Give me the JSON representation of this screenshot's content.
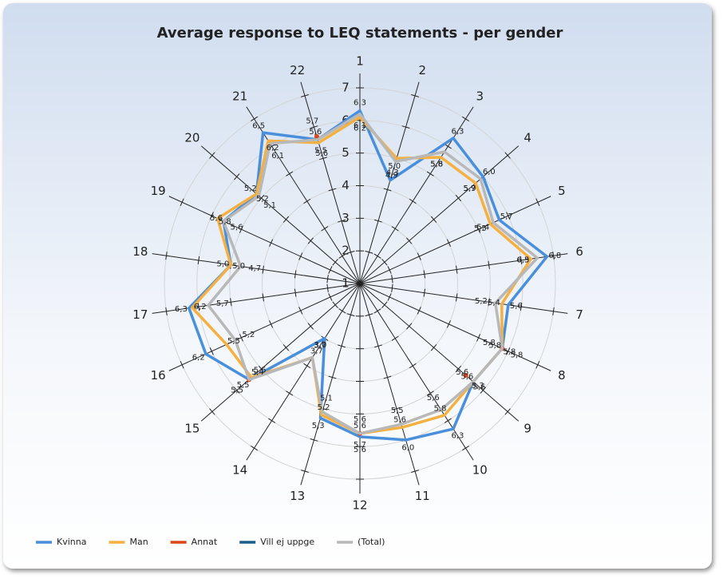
{
  "chart_data": {
    "type": "radar",
    "title": "Average response to LEQ statements - per gender",
    "categories": [
      "1",
      "2",
      "3",
      "4",
      "5",
      "6",
      "7",
      "8",
      "9",
      "10",
      "11",
      "12",
      "13",
      "14",
      "15",
      "16",
      "17",
      "18",
      "19",
      "20",
      "21",
      "22"
    ],
    "ylim": [
      1,
      7
    ],
    "yticks": [
      1,
      2,
      3,
      4,
      5,
      6,
      7
    ],
    "grid": true,
    "legend": "bottom",
    "series": [
      {
        "name": "Kvinna",
        "color": "#4a8fdc",
        "values": [
          6.3,
          4.3,
          6.3,
          6.0,
          5.7,
          6.8,
          5.6,
          5.8,
          5.6,
          6.3,
          6.0,
          5.7,
          5.3,
          3.0,
          5.5,
          6.2,
          6.3,
          5.0,
          5.6,
          5.2,
          6.5,
          5.6
        ],
        "value_labels": [
          "6,3",
          "4,3",
          "6,3",
          "6,0",
          "5,7",
          "6,8",
          "5,6",
          "5,8",
          "5,6",
          "6,3",
          "6,0",
          "5,7",
          "5,3",
          "3,0",
          "5,5",
          "6,2",
          "6,3",
          "5,0",
          "5,6",
          "5,2",
          "6,5",
          "5,6"
        ]
      },
      {
        "name": "Man",
        "color": "#f5b042",
        "values": [
          6.1,
          5.0,
          5.6,
          5.7,
          5.4,
          6.3,
          5.4,
          5.8,
          5.6,
          5.8,
          5.6,
          5.6,
          5.2,
          3.7,
          5.4,
          5.5,
          6.2,
          5.0,
          5.8,
          5.2,
          6.2,
          5.5
        ],
        "value_labels": [
          "6,1",
          "5,0",
          "5,6",
          "5,7",
          "5,4",
          "6,3",
          "5,4",
          "5,8",
          "5,6",
          "5,8",
          "5,6",
          "5,6",
          "5,2",
          "3,7",
          "5,4",
          "5,5",
          "6,2",
          "5,0",
          "5,8",
          "5,2",
          "6,2",
          "5,5"
        ]
      },
      {
        "name": "Annat",
        "color": "#d9471b",
        "values": [
          null,
          null,
          null,
          null,
          null,
          null,
          null,
          5.8,
          5.3,
          null,
          null,
          5.6,
          null,
          null,
          5.5,
          null,
          null,
          null,
          null,
          null,
          null,
          5.7
        ],
        "value_labels": [
          null,
          null,
          null,
          null,
          null,
          null,
          null,
          "5,8",
          "5,3",
          null,
          null,
          "5,6",
          null,
          null,
          "5,5",
          null,
          null,
          null,
          null,
          null,
          null,
          "5,7"
        ]
      },
      {
        "name": "Vill ej uppge",
        "color": "#1a5e8a",
        "values": [
          null,
          null,
          null,
          null,
          null,
          null,
          null,
          null,
          null,
          null,
          null,
          null,
          null,
          null,
          null,
          null,
          null,
          null,
          null,
          null,
          null,
          null
        ]
      },
      {
        "name": "(Total)",
        "color": "#b8b8b8",
        "values": [
          6.2,
          4.9,
          5.8,
          5.9,
          5.5,
          6.5,
          5.2,
          5.8,
          5.6,
          5.6,
          5.5,
          5.6,
          5.1,
          3.7,
          5.5,
          5.2,
          5.7,
          4.7,
          5.6,
          5.1,
          6.1,
          5.6
        ],
        "value_labels": [
          "6,2",
          "4,9",
          "5,8",
          "5,9",
          "5,5",
          "6,5",
          "5,2",
          "5,8",
          "5,6",
          "5,6",
          "5,5",
          "5,6",
          "5,1",
          "3,7",
          "5,5",
          "5,2",
          "5,7",
          "4,7",
          "5,6",
          "5,1",
          "6,1",
          "5,6"
        ]
      }
    ]
  }
}
